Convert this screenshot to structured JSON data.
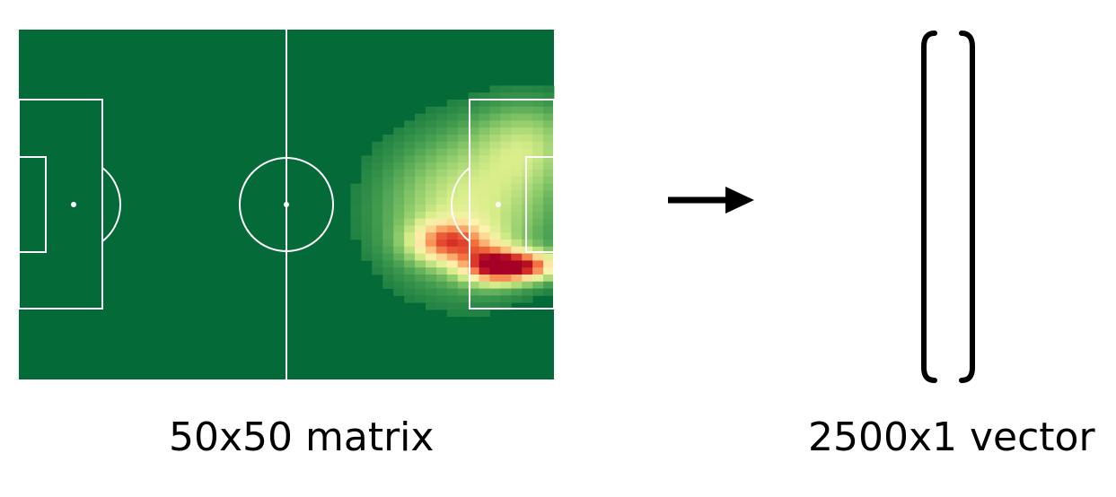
{
  "matrix_caption": "50x50 matrix",
  "vector_caption": "2500x1 vector",
  "colors": {
    "pitch": "#046a38",
    "lines": "#ffffff",
    "arrow": "#000000",
    "bracket": "#000000",
    "heat_scale": [
      "#046a38",
      "#3f9a4e",
      "#8cca6a",
      "#d9ee8b",
      "#fff2b0",
      "#fdc07a",
      "#f4713f",
      "#d62f27",
      "#a50026"
    ]
  },
  "heatmap": {
    "grid_cols": 50,
    "grid_rows": 50,
    "hotspot_description_free": true
  }
}
